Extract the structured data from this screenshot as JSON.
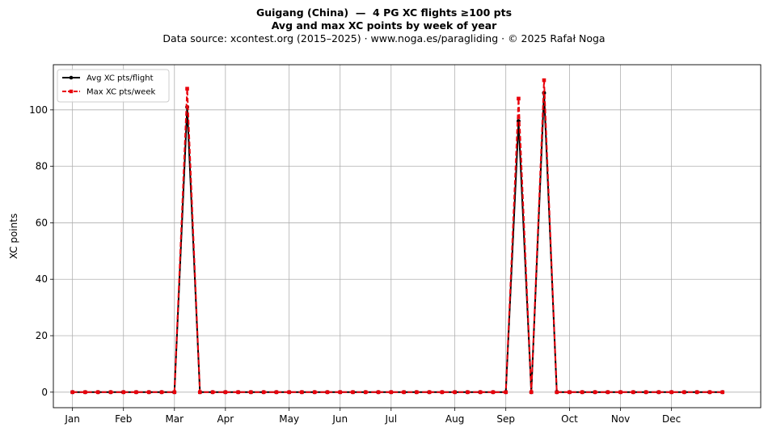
{
  "header": {
    "title": "Guigang (China)  —  4 PG XC flights ≥100 pts",
    "subtitle": "Avg and max XC points by week of year",
    "source": "Data source: xcontest.org (2015–2025)  ·  www.noga.es/paragliding  ·  © 2025 Rafał Noga"
  },
  "chart_data": {
    "type": "line",
    "title": "Guigang (China)  —  4 PG XC flights ≥100 pts",
    "subtitle": "Avg and max XC points by week of year",
    "xlabel": "",
    "ylabel": "XC points",
    "xlim": [
      -1.5,
      54
    ],
    "ylim": [
      -5.5,
      116
    ],
    "grid": true,
    "legend_position": "top-left",
    "x_ticks": [
      {
        "label": "Jan",
        "week": 0
      },
      {
        "label": "Feb",
        "week": 4
      },
      {
        "label": "Mar",
        "week": 8
      },
      {
        "label": "Apr",
        "week": 12
      },
      {
        "label": "May",
        "week": 17
      },
      {
        "label": "Jun",
        "week": 21
      },
      {
        "label": "Jul",
        "week": 25
      },
      {
        "label": "Aug",
        "week": 30
      },
      {
        "label": "Sep",
        "week": 34
      },
      {
        "label": "Oct",
        "week": 39
      },
      {
        "label": "Nov",
        "week": 43
      },
      {
        "label": "Dec",
        "week": 47
      }
    ],
    "y_ticks": [
      0,
      20,
      40,
      60,
      80,
      100
    ],
    "x": [
      0,
      1,
      2,
      3,
      4,
      5,
      6,
      7,
      8,
      9,
      10,
      11,
      12,
      13,
      14,
      15,
      16,
      17,
      18,
      19,
      20,
      21,
      22,
      23,
      24,
      25,
      26,
      27,
      28,
      29,
      30,
      31,
      32,
      33,
      34,
      35,
      36,
      37,
      38,
      39,
      40,
      41,
      42,
      43,
      44,
      45,
      46,
      47,
      48,
      49,
      50,
      51
    ],
    "series": [
      {
        "name": "Avg XC pts/flight",
        "color": "#000000",
        "style": "solid",
        "marker": "circle",
        "values": [
          0,
          0,
          0,
          0,
          0,
          0,
          0,
          0,
          0,
          101,
          0,
          0,
          0,
          0,
          0,
          0,
          0,
          0,
          0,
          0,
          0,
          0,
          0,
          0,
          0,
          0,
          0,
          0,
          0,
          0,
          0,
          0,
          0,
          0,
          0,
          96,
          0,
          106,
          0,
          0,
          0,
          0,
          0,
          0,
          0,
          0,
          0,
          0,
          0,
          0,
          0,
          0
        ]
      },
      {
        "name": "Max XC pts/week",
        "color": "#e8000b",
        "style": "dashed",
        "marker": "square",
        "values": [
          0,
          0,
          0,
          0,
          0,
          0,
          0,
          0,
          0,
          107.5,
          0,
          0,
          0,
          0,
          0,
          0,
          0,
          0,
          0,
          0,
          0,
          0,
          0,
          0,
          0,
          0,
          0,
          0,
          0,
          0,
          0,
          0,
          0,
          0,
          0,
          104,
          0,
          110.5,
          0,
          0,
          0,
          0,
          0,
          0,
          0,
          0,
          0,
          0,
          0,
          0,
          0,
          0
        ]
      }
    ]
  }
}
